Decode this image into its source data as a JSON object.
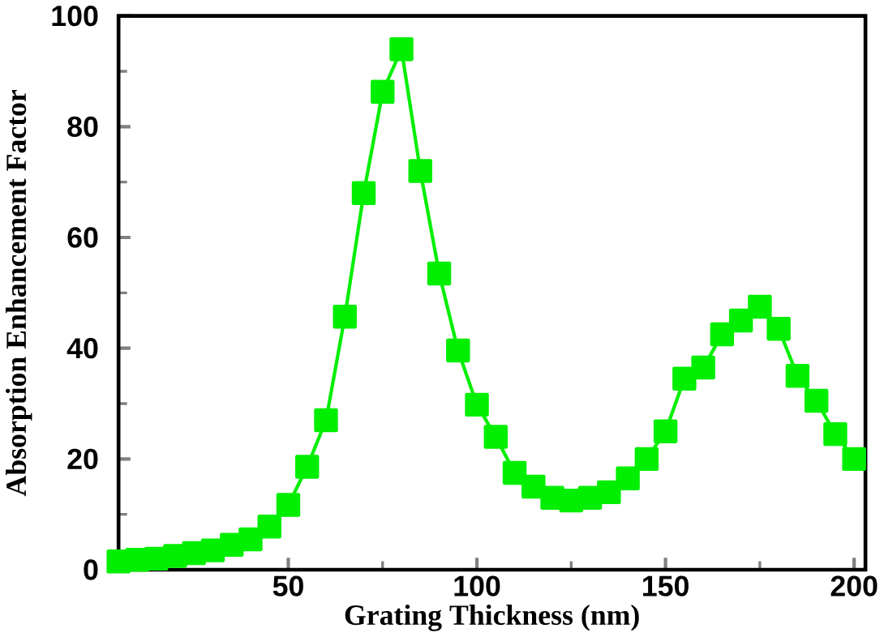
{
  "chart_data": {
    "type": "line",
    "xlabel": "Grating Thickness (nm)",
    "ylabel": "Absorption Enhancement Factor",
    "x": [
      5,
      10,
      15,
      20,
      25,
      30,
      35,
      40,
      45,
      50,
      55,
      60,
      65,
      70,
      75,
      80,
      85,
      90,
      95,
      100,
      105,
      110,
      115,
      120,
      125,
      130,
      135,
      140,
      145,
      150,
      155,
      160,
      165,
      170,
      175,
      180,
      185,
      190,
      195,
      200
    ],
    "series": [
      {
        "color": "#00ee00",
        "values": [
          1.5,
          1.8,
          2,
          2.5,
          3,
          3.5,
          4.5,
          5.5,
          7.8,
          11.7,
          18.6,
          27,
          45.7,
          68,
          86.3,
          94,
          72,
          53.5,
          39.6,
          29.8,
          24,
          17.5,
          15,
          13,
          12.5,
          13,
          14,
          16.5,
          20,
          25,
          34.5,
          36.5,
          42.5,
          45,
          47.5,
          43.5,
          35,
          30.5,
          24.5,
          20
        ]
      }
    ],
    "xlim": [
      5,
      203
    ],
    "ylim": [
      0,
      100
    ],
    "xticks": [
      50,
      100,
      150,
      200
    ],
    "yticks": [
      0,
      20,
      40,
      60,
      80,
      100
    ],
    "marker": "square",
    "line_style": "solid",
    "grid": false,
    "legend": false
  }
}
